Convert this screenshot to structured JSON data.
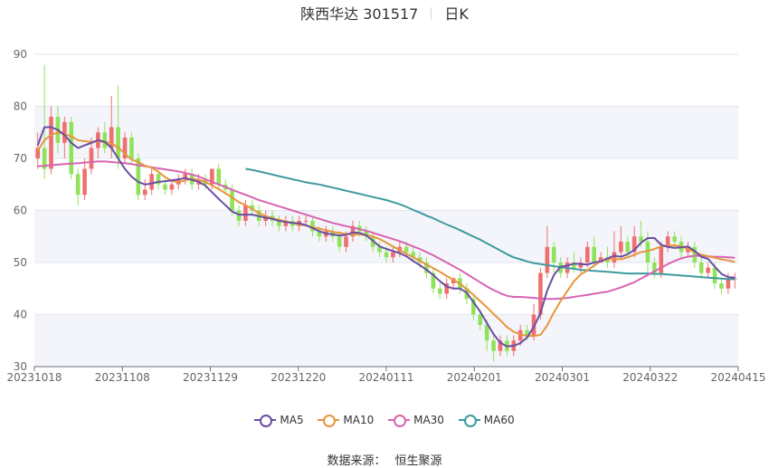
{
  "header": {
    "stock_name": "陕西华达 301517",
    "period": "日K"
  },
  "source": {
    "label": "数据来源：",
    "provider": "恒生聚源"
  },
  "colors": {
    "up": "#ef6e6e",
    "down": "#8fe35a",
    "ma5": "#6a4ea3",
    "ma10": "#e8953d",
    "ma30": "#d764b2",
    "ma60": "#3f9a9e"
  },
  "chart_data": {
    "type": "candlestick",
    "ylim": [
      30,
      90
    ],
    "y_ticks": [
      30,
      40,
      50,
      60,
      70,
      80,
      90
    ],
    "x_tick_labels": [
      "20231018",
      "20231108",
      "20231129",
      "20231220",
      "20240111",
      "20240201",
      "20240301",
      "20240322",
      "20240415"
    ],
    "legend": [
      "MA5",
      "MA10",
      "MA30",
      "MA60"
    ],
    "candles": [
      [
        70,
        72,
        68,
        75
      ],
      [
        72,
        68,
        66,
        88
      ],
      [
        68,
        78,
        67,
        80
      ],
      [
        78,
        73,
        71,
        80
      ],
      [
        73,
        77,
        70,
        78
      ],
      [
        77,
        67,
        66,
        78
      ],
      [
        67,
        63,
        61,
        68
      ],
      [
        63,
        68,
        62,
        70
      ],
      [
        68,
        72,
        67,
        74
      ],
      [
        72,
        75,
        70,
        76
      ],
      [
        75,
        72,
        71,
        77
      ],
      [
        72,
        76,
        70,
        82
      ],
      [
        76,
        70,
        68,
        84
      ],
      [
        70,
        74,
        69,
        75
      ],
      [
        74,
        70,
        69,
        75
      ],
      [
        70,
        63,
        62,
        71
      ],
      [
        63,
        64,
        62,
        66
      ],
      [
        64,
        67,
        63,
        68
      ],
      [
        67,
        65,
        64,
        68
      ],
      [
        65,
        64,
        63,
        66
      ],
      [
        64,
        65,
        63,
        66
      ],
      [
        65,
        66,
        64,
        67
      ],
      [
        66,
        67,
        65,
        68
      ],
      [
        67,
        65,
        64,
        68
      ],
      [
        65,
        66,
        64,
        67
      ],
      [
        66,
        65,
        64,
        67
      ],
      [
        65,
        68,
        64,
        68
      ],
      [
        68,
        65,
        64,
        69
      ],
      [
        65,
        64,
        63,
        66
      ],
      [
        64,
        60,
        59,
        65
      ],
      [
        60,
        58,
        57,
        61
      ],
      [
        58,
        61,
        57,
        62
      ],
      [
        61,
        60,
        59,
        62
      ],
      [
        60,
        58,
        57,
        61
      ],
      [
        58,
        59,
        57,
        60
      ],
      [
        59,
        58,
        57,
        60
      ],
      [
        58,
        57,
        56,
        59
      ],
      [
        57,
        58,
        56,
        59
      ],
      [
        58,
        57,
        56,
        59
      ],
      [
        57,
        58,
        56,
        59
      ],
      [
        58,
        58,
        57,
        59
      ],
      [
        58,
        56,
        55,
        59
      ],
      [
        56,
        55,
        54,
        57
      ],
      [
        55,
        56,
        54,
        57
      ],
      [
        56,
        55,
        54,
        57
      ],
      [
        55,
        53,
        52,
        56
      ],
      [
        53,
        55,
        52,
        56
      ],
      [
        55,
        57,
        54,
        58
      ],
      [
        57,
        56,
        55,
        58
      ],
      [
        56,
        55,
        54,
        57
      ],
      [
        55,
        53,
        52,
        56
      ],
      [
        53,
        52,
        51,
        54
      ],
      [
        52,
        51,
        50,
        53
      ],
      [
        51,
        52,
        50,
        53
      ],
      [
        52,
        53,
        51,
        54
      ],
      [
        53,
        52,
        51,
        54
      ],
      [
        52,
        51,
        50,
        53
      ],
      [
        51,
        50,
        49,
        52
      ],
      [
        50,
        48,
        47,
        51
      ],
      [
        48,
        45,
        44,
        49
      ],
      [
        45,
        44,
        43,
        46
      ],
      [
        44,
        46,
        43,
        47
      ],
      [
        46,
        47,
        45,
        47
      ],
      [
        47,
        45,
        44,
        48
      ],
      [
        45,
        43,
        42,
        46
      ],
      [
        43,
        40,
        39,
        44
      ],
      [
        40,
        38,
        37,
        41
      ],
      [
        38,
        35,
        33,
        39
      ],
      [
        35,
        33,
        31,
        36
      ],
      [
        33,
        35,
        32,
        36
      ],
      [
        35,
        33,
        32,
        36
      ],
      [
        33,
        35,
        32,
        36
      ],
      [
        35,
        37,
        34,
        38
      ],
      [
        37,
        36,
        35,
        38
      ],
      [
        36,
        40,
        35,
        42
      ],
      [
        40,
        48,
        39,
        49
      ],
      [
        48,
        53,
        47,
        57
      ],
      [
        53,
        50,
        48,
        54
      ],
      [
        50,
        48,
        47,
        51
      ],
      [
        48,
        50,
        47,
        51
      ],
      [
        50,
        49,
        48,
        52
      ],
      [
        49,
        50,
        48,
        51
      ],
      [
        50,
        53,
        49,
        54
      ],
      [
        53,
        50,
        49,
        55
      ],
      [
        50,
        51,
        50,
        52
      ],
      [
        51,
        50,
        49,
        53
      ],
      [
        50,
        52,
        49,
        56
      ],
      [
        52,
        54,
        51,
        57
      ],
      [
        54,
        52,
        51,
        55
      ],
      [
        52,
        55,
        51,
        57
      ],
      [
        55,
        54,
        53,
        58
      ],
      [
        54,
        50,
        48,
        56
      ],
      [
        50,
        48,
        47,
        51
      ],
      [
        48,
        53,
        47,
        54
      ],
      [
        53,
        55,
        52,
        56
      ],
      [
        55,
        54,
        53,
        56
      ],
      [
        54,
        52,
        51,
        55
      ],
      [
        52,
        53,
        51,
        54
      ],
      [
        53,
        50,
        49,
        54
      ],
      [
        50,
        48,
        47,
        51
      ],
      [
        48,
        49,
        47,
        50
      ],
      [
        49,
        46,
        45,
        50
      ],
      [
        46,
        45,
        44,
        47
      ],
      [
        45,
        47,
        44,
        48
      ],
      [
        47,
        47,
        45,
        48
      ]
    ],
    "ma5": [
      72.5,
      76,
      76,
      75.5,
      74.5,
      73,
      72,
      72.5,
      73,
      73.5,
      73.2,
      72,
      70,
      68,
      66.5,
      65.5,
      65,
      65.2,
      65.5,
      65.6,
      65.8,
      66,
      66.2,
      65.9,
      65.5,
      64.8,
      63.5,
      62.2,
      61,
      59.8,
      59.2,
      59.2,
      59.2,
      58.9,
      58.6,
      58.4,
      58,
      57.8,
      57.6,
      57.5,
      57.2,
      56.6,
      56,
      55.6,
      55.4,
      55.2,
      55.3,
      55.8,
      55.7,
      55.2,
      54.2,
      53.1,
      52.6,
      52.2,
      51.8,
      51.2,
      50.3,
      49.5,
      48.6,
      47.6,
      46.4,
      45.4,
      45,
      45,
      44.2,
      42.4,
      40.6,
      38.4,
      36.2,
      34.6,
      33.9,
      34,
      34.5,
      35.6,
      37.6,
      40.3,
      44.6,
      47.6,
      49.2,
      49.4,
      49.8,
      49.7,
      49.6,
      50,
      50.2,
      50.8,
      51.3,
      51.1,
      51.6,
      52.4,
      53.8,
      54.7,
      54.7,
      53.4,
      53,
      52.8,
      52.9,
      53.1,
      52.2,
      51.1,
      50.7,
      49.2,
      47.8,
      47.2,
      47.1
    ],
    "ma10": [
      71.5,
      73.5,
      74.5,
      75,
      74.7,
      74.2,
      73.5,
      73.3,
      73.2,
      73.3,
      73.2,
      72.9,
      72.1,
      70.9,
      69.8,
      69.3,
      68.6,
      68.2,
      67.4,
      66.4,
      65.7,
      65.4,
      65.8,
      66.1,
      65.9,
      65.5,
      64.8,
      64.1,
      63.3,
      62.5,
      61.6,
      61,
      60.3,
      59.5,
      58.9,
      58.5,
      58.2,
      57.9,
      57.6,
      57.3,
      57.1,
      56.8,
      56.5,
      56.2,
      55.9,
      55.7,
      55.5,
      55.4,
      55.4,
      55.3,
      55,
      54.5,
      53.8,
      53.1,
      52.4,
      51.7,
      51,
      50.3,
      49.6,
      48.9,
      48.2,
      47.4,
      46.7,
      45.9,
      44.9,
      43.8,
      42.6,
      41.4,
      40.1,
      38.9,
      37.6,
      36.7,
      36.2,
      35.9,
      35.9,
      36.1,
      37.9,
      40.4,
      42.6,
      44.5,
      46.4,
      47.7,
      48.5,
      49.4,
      50.3,
      50.6,
      50.7,
      50.6,
      51,
      51.5,
      52,
      52.2,
      52.6,
      53.1,
      53.2,
      53.3,
      53.1,
      52.6,
      52,
      51.5,
      51.2,
      50.9,
      50.6,
      50.4,
      50.1
    ],
    "ma30": [
      68.5,
      68.6,
      68.7,
      68.8,
      68.9,
      69,
      69.1,
      69.2,
      69.3,
      69.4,
      69.4,
      69.3,
      69.2,
      69.1,
      68.9,
      68.7,
      68.5,
      68.3,
      68.1,
      67.9,
      67.7,
      67.5,
      67.2,
      66.9,
      66.5,
      66,
      65.5,
      65,
      64.5,
      64,
      63.5,
      63,
      62.5,
      62,
      61.6,
      61.2,
      60.8,
      60.4,
      60,
      59.6,
      59.2,
      58.8,
      58.4,
      58,
      57.6,
      57.3,
      57,
      56.7,
      56.4,
      56.1,
      55.7,
      55.3,
      54.9,
      54.5,
      54.1,
      53.6,
      53.1,
      52.6,
      52,
      51.4,
      50.7,
      50,
      49.3,
      48.6,
      47.8,
      47,
      46.2,
      45.4,
      44.7,
      44.1,
      43.6,
      43.4,
      43.4,
      43.3,
      43.2,
      43.1,
      43,
      43,
      43.1,
      43.2,
      43.4,
      43.6,
      43.8,
      44,
      44.2,
      44.4,
      44.8,
      45.2,
      45.7,
      46.2,
      46.9,
      47.6,
      48.3,
      49,
      49.7,
      50.3,
      50.8,
      51.1,
      51.3,
      51.3,
      51.2,
      51.1,
      51.1,
      51,
      50.9
    ],
    "ma60": [
      null,
      null,
      null,
      null,
      null,
      null,
      null,
      null,
      null,
      null,
      null,
      null,
      null,
      null,
      null,
      null,
      null,
      null,
      null,
      null,
      null,
      null,
      null,
      null,
      null,
      null,
      null,
      null,
      null,
      null,
      null,
      68,
      67.8,
      67.5,
      67.2,
      66.9,
      66.6,
      66.3,
      66,
      65.7,
      65.4,
      65.2,
      65,
      64.7,
      64.4,
      64.1,
      63.8,
      63.5,
      63.2,
      62.9,
      62.6,
      62.3,
      62,
      61.6,
      61.2,
      60.7,
      60.1,
      59.6,
      59,
      58.5,
      57.9,
      57.3,
      56.8,
      56.2,
      55.6,
      55,
      54.4,
      53.7,
      53,
      52.3,
      51.6,
      51,
      50.6,
      50.2,
      49.9,
      49.7,
      49.5,
      49.3,
      49.1,
      48.9,
      48.8,
      48.6,
      48.5,
      48.4,
      48.3,
      48.2,
      48.1,
      48,
      47.9,
      47.9,
      47.9,
      47.9,
      47.8,
      47.8,
      47.7,
      47.6,
      47.5,
      47.4,
      47.3,
      47.2,
      47.1,
      47,
      46.9,
      46.8,
      46.8
    ]
  }
}
